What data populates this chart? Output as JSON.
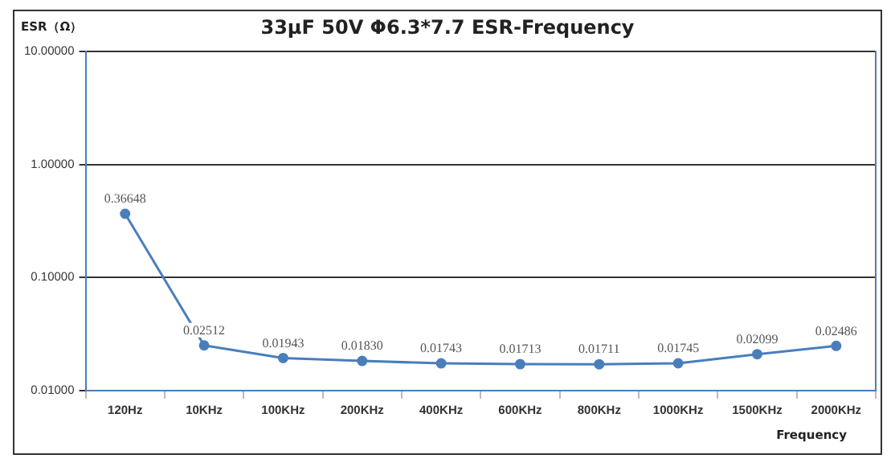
{
  "chart_data": {
    "type": "line",
    "title": "33μF 50V Φ6.3*7.7 ESR-Frequency",
    "xlabel": "Frequency",
    "ylabel": "ESR（Ω）",
    "categories": [
      "120Hz",
      "10KHz",
      "100KHz",
      "200KHz",
      "400KHz",
      "600KHz",
      "800KHz",
      "1000KHz",
      "1500KHz",
      "2000KHz"
    ],
    "series": [
      {
        "color": "#4a7ebb",
        "values": [
          0.36648,
          0.02512,
          0.01943,
          0.0183,
          0.01743,
          0.01713,
          0.01711,
          0.01745,
          0.02099,
          0.02486
        ],
        "value_labels": [
          "0.36648",
          "0.02512",
          "0.01943",
          "0.01830",
          "0.01743",
          "0.01713",
          "0.01711",
          "0.01745",
          "0.02099",
          "0.02486"
        ]
      }
    ],
    "log": "y",
    "ylim": [
      0.01,
      10
    ],
    "yticks": [
      {
        "value": 0.01,
        "label": "0.01000"
      },
      {
        "value": 0.1,
        "label": "0.10000"
      },
      {
        "value": 1,
        "label": "1.00000"
      },
      {
        "value": 10,
        "label": "10.00000"
      }
    ],
    "grid": "y",
    "marker": "circle",
    "line_style": "solid",
    "legend": false
  }
}
